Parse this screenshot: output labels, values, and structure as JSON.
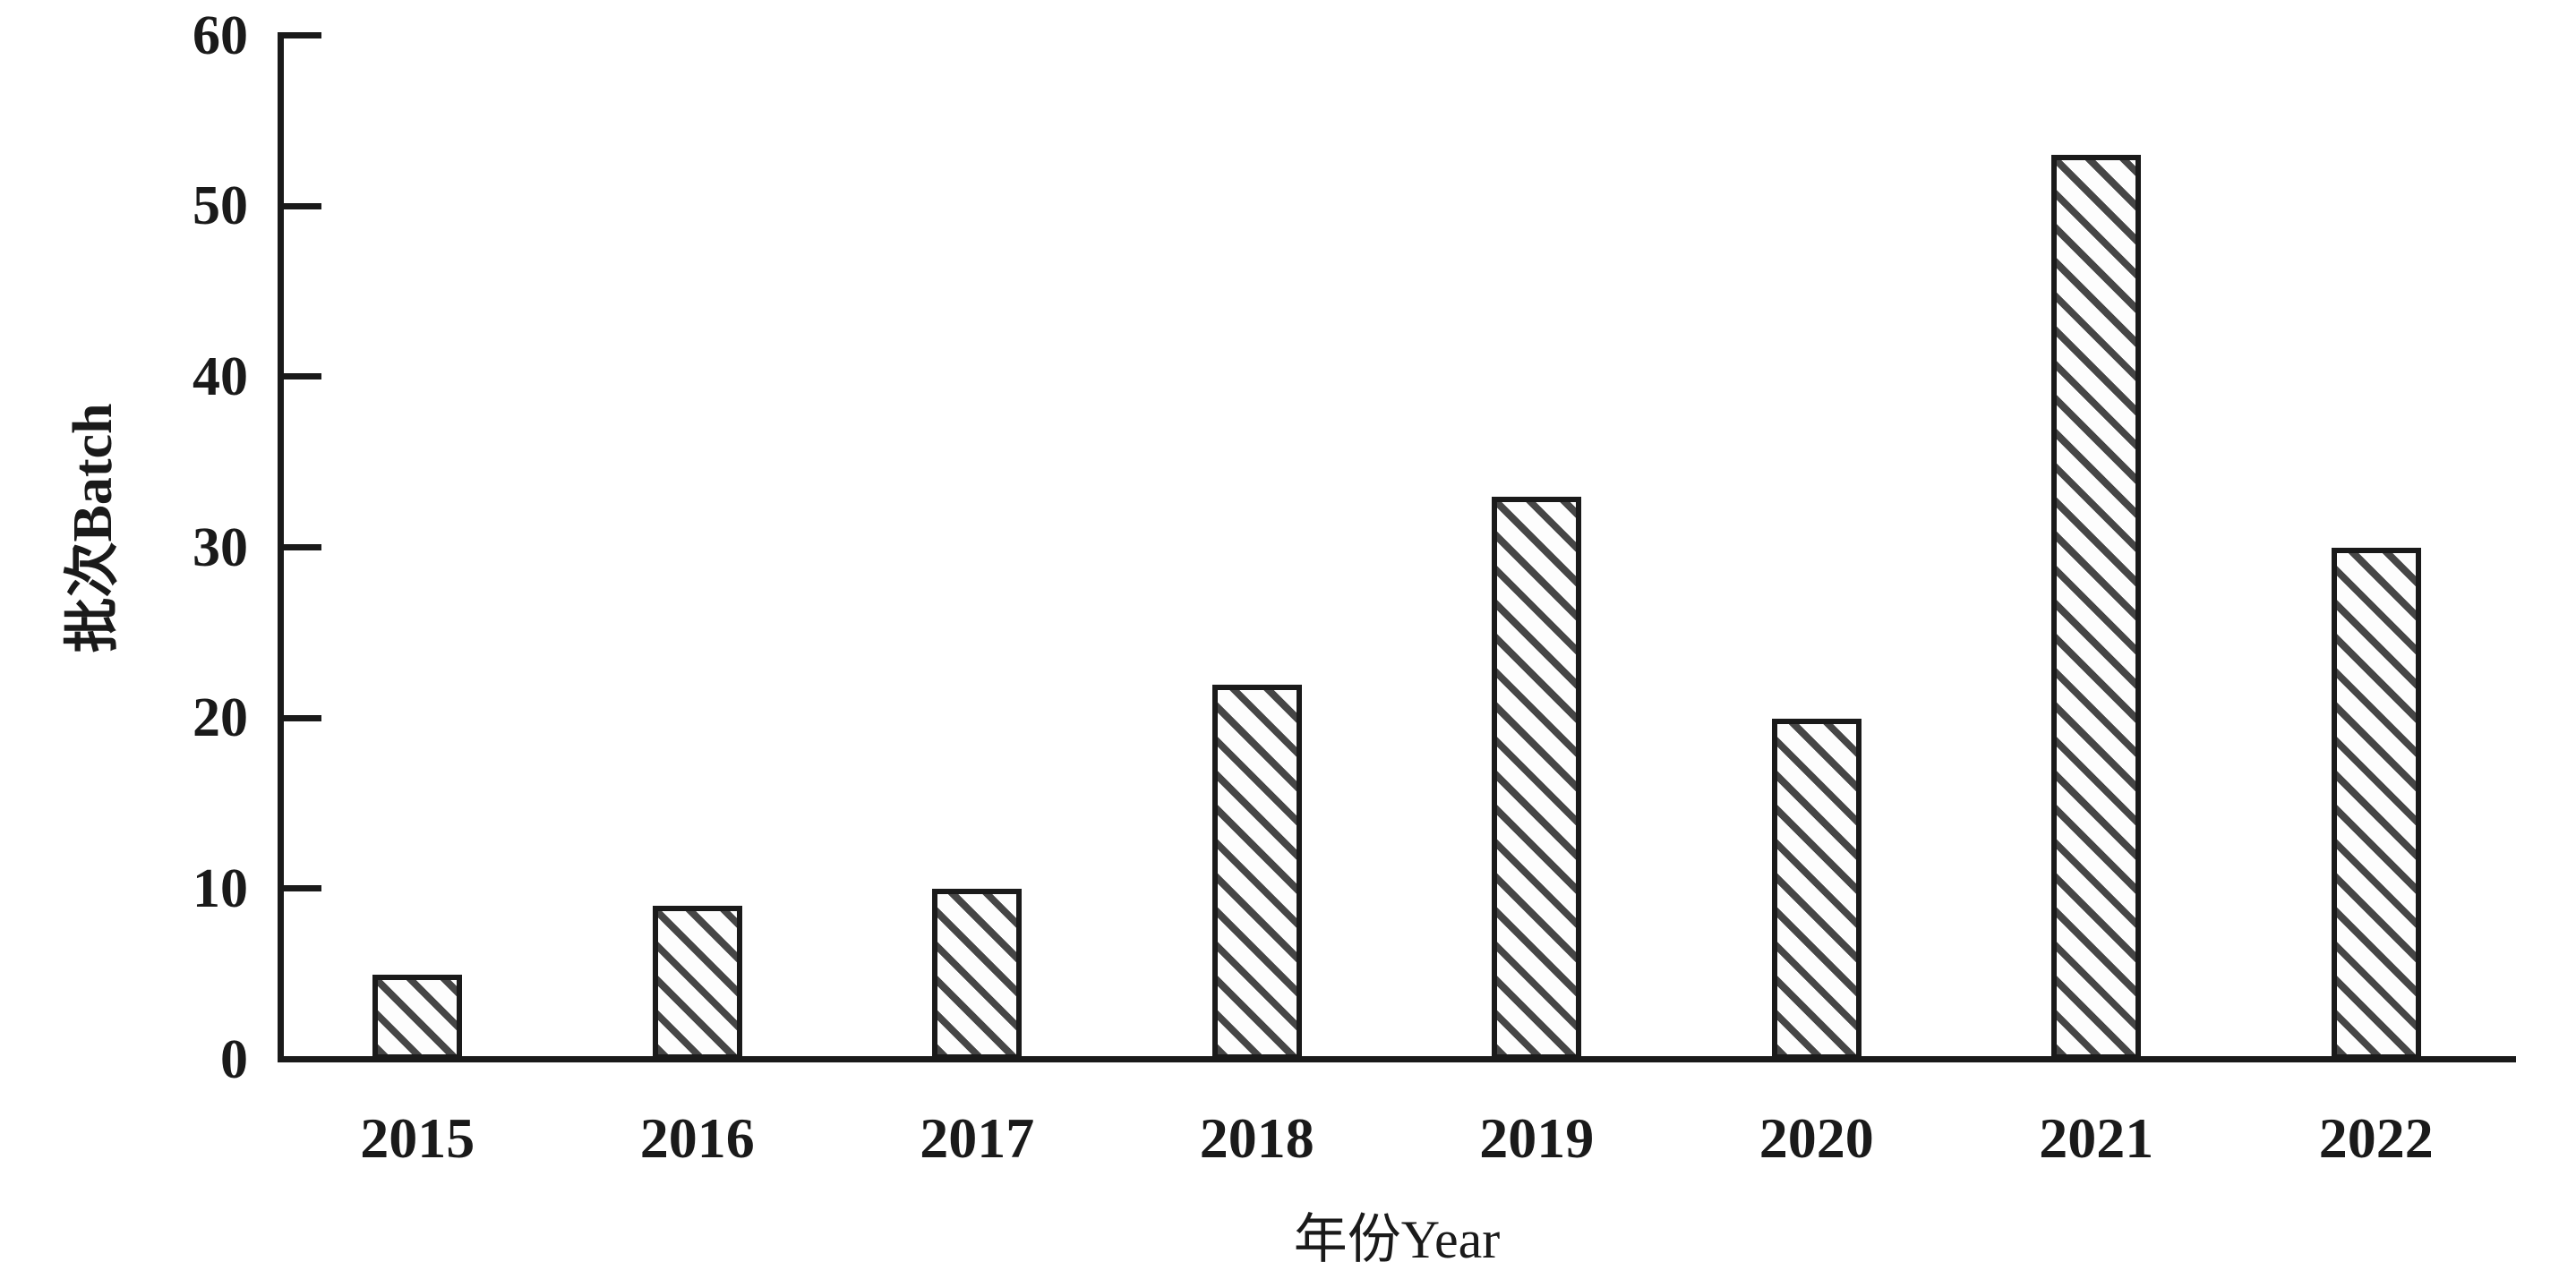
{
  "figure": {
    "background": "#ffffff",
    "ink_color": "#1a1a1a"
  },
  "chart_data": {
    "type": "bar",
    "title": "",
    "categories": [
      "2015",
      "2016",
      "2017",
      "2018",
      "2019",
      "2020",
      "2021",
      "2022"
    ],
    "values": [
      5,
      9,
      10,
      22,
      33,
      20,
      53,
      30
    ],
    "xlabel": "年份Year",
    "ylabel": "批次Batch",
    "ylim": [
      0,
      60
    ],
    "ytick_interval": 10,
    "yticks": [
      "0",
      "10",
      "20",
      "30",
      "40",
      "50",
      "60"
    ],
    "grid": false,
    "legend": "none",
    "bar_style": {
      "fill": "#fdfdfd",
      "hatch": "diagonal-down",
      "hatch_color": "#2d2d2d",
      "border_color": "#1a1a1a"
    }
  }
}
